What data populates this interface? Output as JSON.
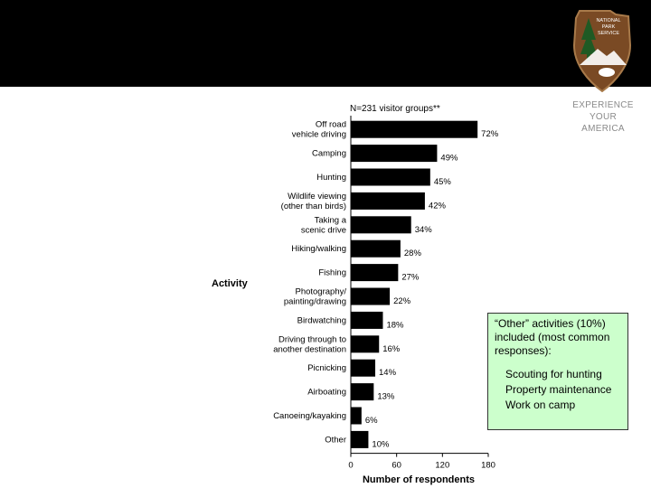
{
  "header": {
    "background": "#000000"
  },
  "logo": {
    "text_lines": [
      "NATIONAL",
      "PARK",
      "SERVICE"
    ],
    "colors": {
      "fill": "#7a4a24",
      "border": "#a87a4a",
      "tree": "#1f5a24"
    }
  },
  "tagline": {
    "lines": [
      "EXPERIENCE",
      "YOUR",
      "AMERICA"
    ]
  },
  "callout": {
    "intro": "“Other” activities (10%) included (most common responses):",
    "items": [
      "Scouting for hunting",
      "Property maintenance",
      "Work on camp"
    ],
    "background": "#ccffcc"
  },
  "chart_data": {
    "type": "bar",
    "orientation": "horizontal",
    "title": "N=231 visitor groups**",
    "ylabel": "Activity",
    "xlabel": "Number of respondents",
    "xlim": [
      0,
      180
    ],
    "xticks": [
      0,
      60,
      120,
      180
    ],
    "bar_color": "#000000",
    "categories": [
      [
        "Off road",
        "vehicle driving"
      ],
      [
        "Camping"
      ],
      [
        "Hunting"
      ],
      [
        "Wildlife viewing",
        "(other than birds)"
      ],
      [
        "Taking a",
        "scenic drive"
      ],
      [
        "Hiking/walking"
      ],
      [
        "Fishing"
      ],
      [
        "Photography/",
        "painting/drawing"
      ],
      [
        "Birdwatching"
      ],
      [
        "Driving through to",
        "another destination"
      ],
      [
        "Picnicking"
      ],
      [
        "Airboating"
      ],
      [
        "Canoeing/kayaking"
      ],
      [
        "Other"
      ]
    ],
    "values": [
      166,
      113,
      104,
      97,
      79,
      65,
      62,
      51,
      42,
      37,
      32,
      30,
      14,
      23
    ],
    "data_labels": [
      "72%",
      "49%",
      "45%",
      "42%",
      "34%",
      "28%",
      "27%",
      "22%",
      "18%",
      "16%",
      "14%",
      "13%",
      "6%",
      "10%"
    ]
  }
}
